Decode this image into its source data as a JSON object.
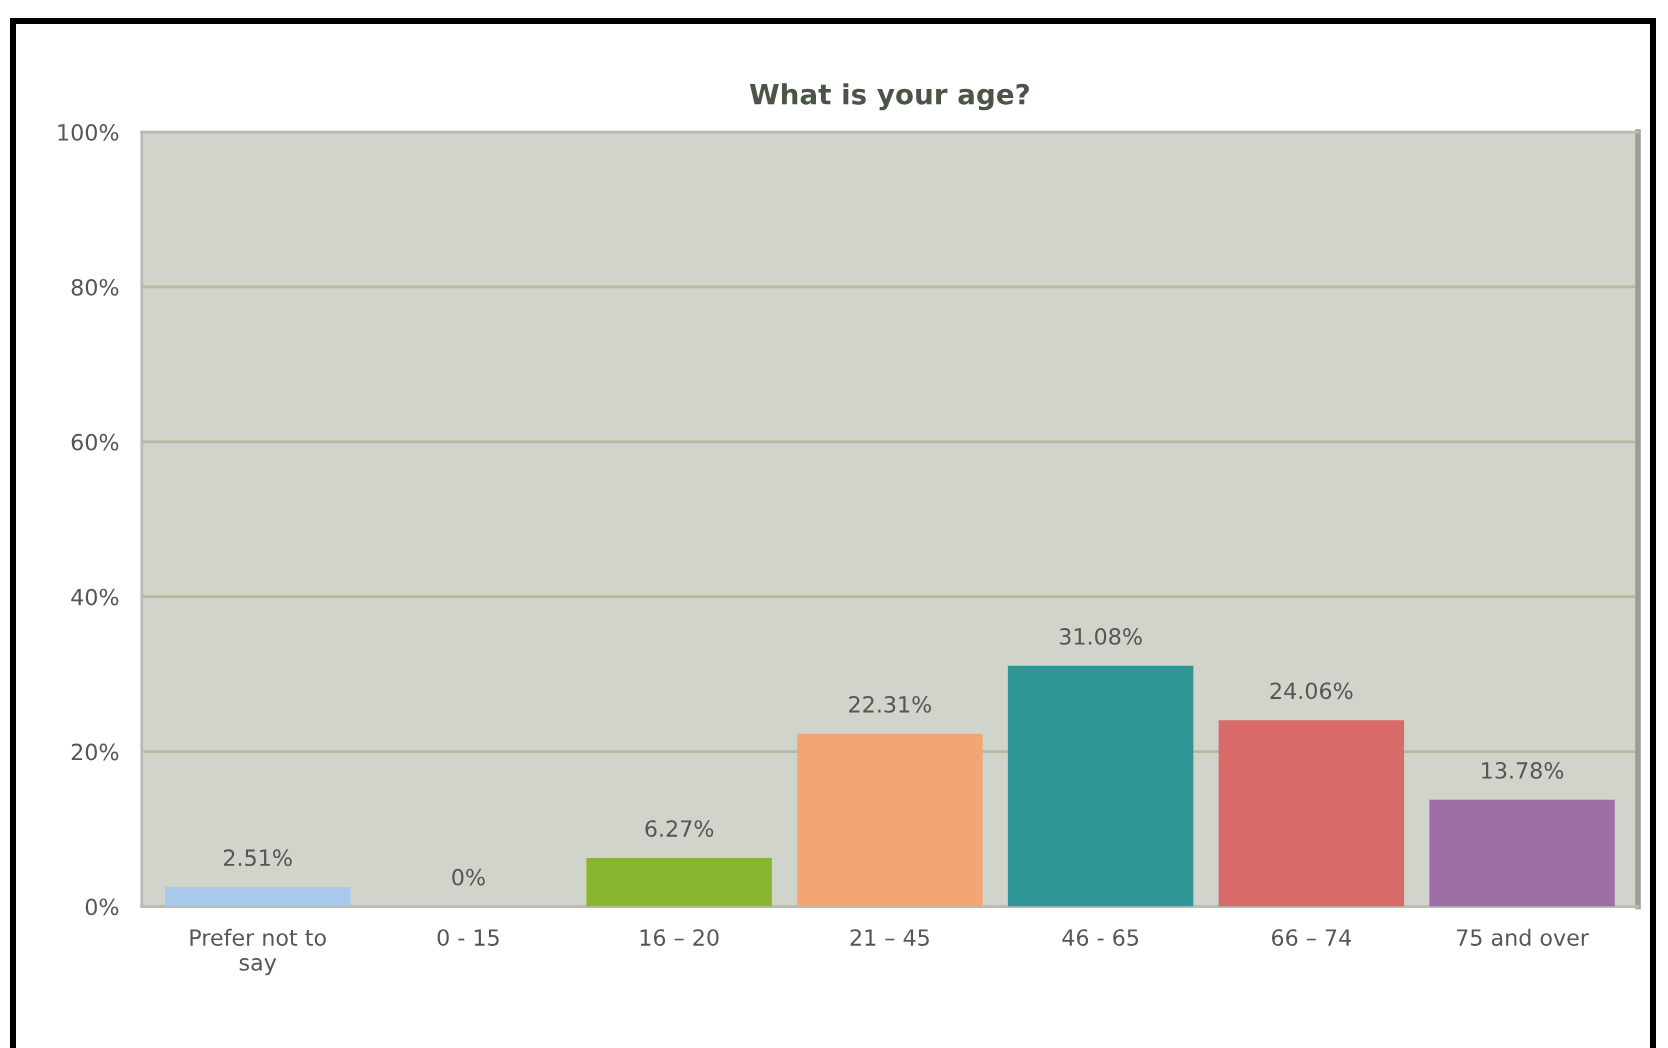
{
  "chart_data": {
    "type": "bar",
    "title": "What is your age?",
    "categories": [
      "Prefer not to say",
      "0 - 15",
      "16 – 20",
      "21 – 45",
      "46 - 65",
      "66 – 74",
      "75 and over"
    ],
    "values": [
      2.51,
      0,
      6.27,
      22.31,
      31.08,
      24.06,
      13.78
    ],
    "colors": [
      "#a9c9ea",
      "#f0b63a",
      "#8ab531",
      "#f2a676",
      "#2f9595",
      "#d86a6a",
      "#9e6fa6"
    ],
    "value_labels": [
      "2.51%",
      "0%",
      "6.27%",
      "22.31%",
      "31.08%",
      "24.06%",
      "13.78%"
    ],
    "ylim": [
      0,
      100
    ],
    "yticks": [
      {
        "value": 0,
        "label": "0%"
      },
      {
        "value": 20,
        "label": "20%"
      },
      {
        "value": 40,
        "label": "40%"
      },
      {
        "value": 60,
        "label": "60%"
      },
      {
        "value": 80,
        "label": "80%"
      },
      {
        "value": 100,
        "label": "100%"
      }
    ],
    "grid": "y",
    "legend": false
  }
}
